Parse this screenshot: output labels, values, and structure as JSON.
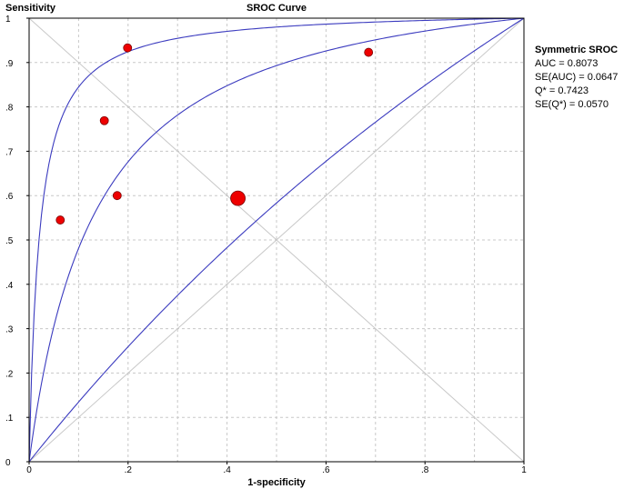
{
  "chart_data": {
    "type": "scatter",
    "title": "SROC Curve",
    "xlabel": "1-specificity",
    "ylabel": "Sensitivity",
    "xlim": [
      0,
      1
    ],
    "ylim": [
      0,
      1
    ],
    "grid": true,
    "x_ticks": [
      "0",
      ".2",
      ".4",
      ".6",
      ".8",
      "1"
    ],
    "y_ticks": [
      "0",
      ".1",
      ".2",
      ".3",
      ".4",
      ".5",
      ".6",
      ".7",
      ".8",
      ".9",
      "1"
    ],
    "points": [
      {
        "x": 0.063,
        "y": 0.545,
        "size": "small"
      },
      {
        "x": 0.152,
        "y": 0.769,
        "size": "small"
      },
      {
        "x": 0.178,
        "y": 0.6,
        "size": "small"
      },
      {
        "x": 0.199,
        "y": 0.933,
        "size": "small"
      },
      {
        "x": 0.422,
        "y": 0.594,
        "size": "large"
      },
      {
        "x": 0.686,
        "y": 0.923,
        "size": "small"
      }
    ],
    "curves": [
      {
        "type": "sroc",
        "diagnostic_odds_ratio": 49
      },
      {
        "type": "sroc",
        "diagnostic_odds_ratio": 8.35
      },
      {
        "type": "sroc",
        "diagnostic_odds_ratio": 1.4
      }
    ],
    "reference_lines": [
      "diagonal y = x",
      "anti-diagonal y = 1 - x"
    ],
    "colors": {
      "curve": "#3b3bbf",
      "point": "#ee0000",
      "grid": "#c8c8c8"
    }
  },
  "stats_panel": {
    "heading": "Symmetric SROC",
    "lines": [
      "AUC = 0.8073",
      "SE(AUC) = 0.0647",
      "Q* = 0.7423",
      "SE(Q*) = 0.0570"
    ]
  }
}
